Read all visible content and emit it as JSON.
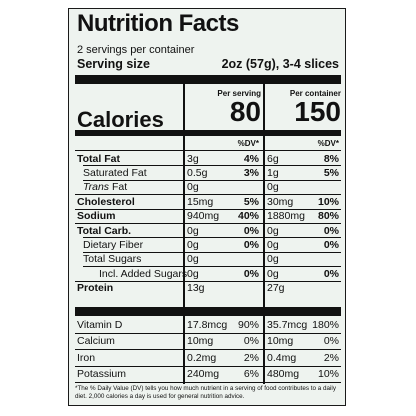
{
  "title": "Nutrition Facts",
  "servings_per_container": "2 servings per container",
  "serving_size_label": "Serving size",
  "serving_size_value": "2oz (57g), 3-4 slices",
  "calories_label": "Calories",
  "per_serving_label": "Per serving",
  "per_container_label": "Per container",
  "calories_per_serving": "80",
  "calories_per_container": "150",
  "dv_header": "%DV*",
  "nutrients": [
    {
      "name": "Total Fat",
      "bold": true,
      "indent": 0,
      "s_amt": "3g",
      "s_dv": "4%",
      "c_amt": "6g",
      "c_dv": "8%"
    },
    {
      "name": "Saturated Fat",
      "bold": false,
      "indent": 1,
      "s_amt": "0.5g",
      "s_dv": "3%",
      "c_amt": "1g",
      "c_dv": "5%"
    },
    {
      "name": "Trans Fat",
      "bold": false,
      "italic_first": true,
      "indent": 1,
      "s_amt": "0g",
      "s_dv": "",
      "c_amt": "0g",
      "c_dv": ""
    },
    {
      "name": "Cholesterol",
      "bold": true,
      "indent": 0,
      "s_amt": "15mg",
      "s_dv": "5%",
      "c_amt": "30mg",
      "c_dv": "10%"
    },
    {
      "name": "Sodium",
      "bold": true,
      "indent": 0,
      "s_amt": "940mg",
      "s_dv": "40%",
      "c_amt": "1880mg",
      "c_dv": "80%"
    },
    {
      "name": "Total Carb.",
      "bold": true,
      "indent": 0,
      "s_amt": "0g",
      "s_dv": "0%",
      "c_amt": "0g",
      "c_dv": "0%"
    },
    {
      "name": "Dietary Fiber",
      "bold": false,
      "indent": 1,
      "s_amt": "0g",
      "s_dv": "0%",
      "c_amt": "0g",
      "c_dv": "0%"
    },
    {
      "name": "Total Sugars",
      "bold": false,
      "indent": 1,
      "s_amt": "0g",
      "s_dv": "",
      "c_amt": "0g",
      "c_dv": ""
    },
    {
      "name": "Incl. Added Sugars",
      "bold": false,
      "indent": 2,
      "s_amt": "0g",
      "s_dv": "0%",
      "c_amt": "0g",
      "c_dv": "0%"
    },
    {
      "name": "Protein",
      "bold": true,
      "indent": 0,
      "s_amt": "13g",
      "s_dv": "",
      "c_amt": "27g",
      "c_dv": ""
    }
  ],
  "vitamins": [
    {
      "name": "Vitamin D",
      "s_amt": "17.8mcg",
      "s_dv": "90%",
      "c_amt": "35.7mcg",
      "c_dv": "180%"
    },
    {
      "name": "Calcium",
      "s_amt": "10mg",
      "s_dv": "0%",
      "c_amt": "10mg",
      "c_dv": "0%"
    },
    {
      "name": "Iron",
      "s_amt": "0.2mg",
      "s_dv": "2%",
      "c_amt": "0.4mg",
      "c_dv": "2%"
    },
    {
      "name": "Potassium",
      "s_amt": "240mg",
      "s_dv": "6%",
      "c_amt": "480mg",
      "c_dv": "10%"
    }
  ],
  "footnote": "*The % Daily Value (DV) tells you how much nutrient in a serving of food contributes to a daily diet. 2,000 calories a day is used for general nutrition advice."
}
